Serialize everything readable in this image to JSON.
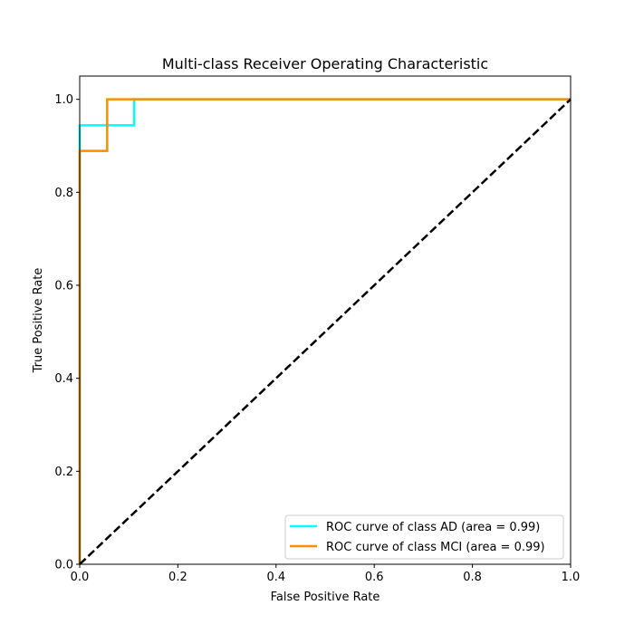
{
  "chart_data": {
    "type": "line",
    "title": "Multi-class Receiver Operating Characteristic",
    "xlabel": "False Positive Rate",
    "ylabel": "True Positive Rate",
    "xlim": [
      0.0,
      1.0
    ],
    "ylim": [
      0.0,
      1.05
    ],
    "x_ticks": [
      "0.0",
      "0.2",
      "0.4",
      "0.6",
      "0.8",
      "1.0"
    ],
    "y_ticks": [
      "0.0",
      "0.2",
      "0.4",
      "0.6",
      "0.8",
      "1.0"
    ],
    "grid": false,
    "legend_position": "lower-right",
    "series": [
      {
        "name": "ROC curve of class AD (area = 0.99)",
        "color": "#00ffff",
        "line_style": "solid",
        "x": [
          0.0,
          0.0,
          0.111,
          0.111,
          1.0
        ],
        "y": [
          0.0,
          0.944,
          0.944,
          1.0,
          1.0
        ]
      },
      {
        "name": "ROC curve of class MCI (area = 0.99)",
        "color": "#ff8c00",
        "line_style": "solid",
        "x": [
          0.0,
          0.0,
          0.056,
          0.056,
          1.0
        ],
        "y": [
          0.0,
          0.889,
          0.889,
          1.0,
          1.0
        ]
      },
      {
        "color": "#000000",
        "line_style": "dashed",
        "x": [
          0.0,
          1.0
        ],
        "y": [
          0.0,
          1.0
        ]
      }
    ]
  }
}
